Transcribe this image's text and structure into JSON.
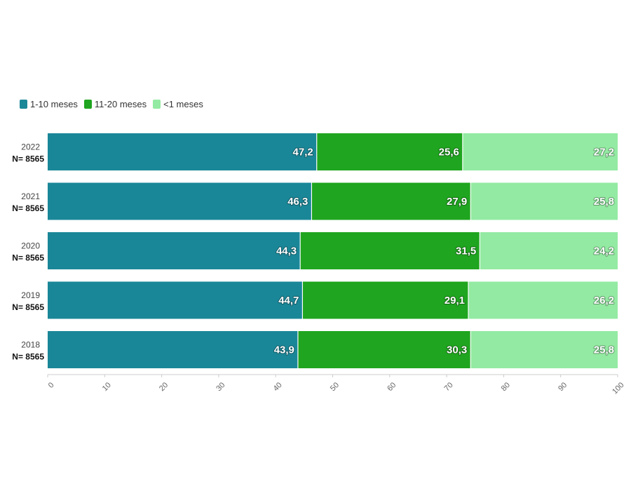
{
  "chart_data": {
    "type": "bar",
    "orientation": "horizontal",
    "stacked": true,
    "categories": [
      "2022",
      "2021",
      "2020",
      "2019",
      "2018"
    ],
    "category_sublabels": [
      "N= 8565",
      "N= 8565",
      "N= 8565",
      "N= 8565",
      "N= 8565"
    ],
    "series": [
      {
        "name": "1-10 meses",
        "color": "#1a8798",
        "values": [
          47.2,
          46.3,
          44.3,
          44.7,
          43.9
        ],
        "labels": [
          "47,2",
          "46,3",
          "44,3",
          "44,7",
          "43,9"
        ]
      },
      {
        "name": "11-20 meses",
        "color": "#1fa51f",
        "values": [
          25.6,
          27.9,
          31.5,
          29.1,
          30.3
        ],
        "labels": [
          "25,6",
          "27,9",
          "31,5",
          "29,1",
          "30,3"
        ]
      },
      {
        "name": "<1 meses",
        "color": "#93eaa2",
        "values": [
          27.2,
          25.8,
          24.2,
          26.2,
          25.8
        ],
        "labels": [
          "27,2",
          "25,8",
          "24,2",
          "26,2",
          "25,8"
        ]
      }
    ],
    "xlim": [
      0,
      100
    ],
    "xticks": [
      0,
      10,
      20,
      30,
      40,
      50,
      60,
      70,
      80,
      90,
      100
    ],
    "tick_labels": [
      "0",
      "10",
      "20",
      "30",
      "40",
      "50",
      "60",
      "70",
      "80",
      "90",
      "100"
    ],
    "legend_position": "top-left",
    "grid": false
  }
}
